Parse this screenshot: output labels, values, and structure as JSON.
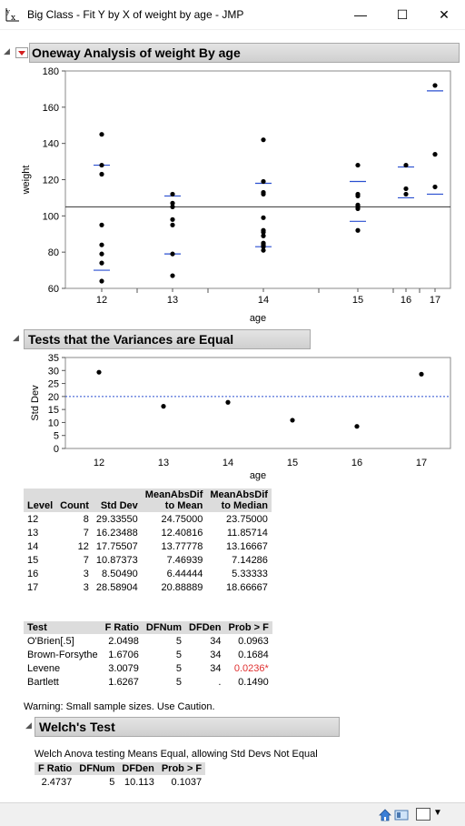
{
  "window": {
    "title": "Big Class - Fit Y by X of weight by age - JMP",
    "minimize_glyph": "—",
    "maximize_glyph": "☐",
    "close_glyph": "✕"
  },
  "oneway": {
    "title": "Oneway Analysis of weight By age",
    "chart_data": {
      "type": "scatter",
      "xlabel": "age",
      "ylabel": "weight",
      "ylim": [
        60,
        180
      ],
      "yticks": [
        60,
        80,
        100,
        120,
        140,
        160,
        180
      ],
      "categories": [
        "12",
        "13",
        "14",
        "15",
        "16",
        "17"
      ],
      "grand_mean": 105,
      "points": {
        "12": [
          145,
          128,
          123,
          95,
          84,
          79,
          74,
          64
        ],
        "13": [
          112,
          107,
          105,
          98,
          95,
          79,
          67
        ],
        "14": [
          142,
          119,
          113,
          112,
          99,
          92,
          91,
          89,
          85,
          84,
          81,
          83
        ],
        "15": [
          128,
          112,
          111,
          106,
          105,
          104,
          92
        ],
        "16": [
          128,
          115,
          112
        ],
        "17": [
          172,
          134,
          116
        ]
      },
      "mean_ticks": {
        "12": [
          128,
          70
        ],
        "13": [
          111,
          79
        ],
        "14": [
          118,
          83
        ],
        "15": [
          119,
          97
        ],
        "16": [
          127,
          110
        ],
        "17": [
          169,
          112
        ]
      }
    }
  },
  "variances": {
    "title": "Tests that the Variances are Equal",
    "chart_data": {
      "type": "scatter",
      "xlabel": "age",
      "ylabel": "Std Dev",
      "ylim": [
        0,
        35
      ],
      "yticks": [
        0,
        5,
        10,
        15,
        20,
        25,
        30,
        35
      ],
      "categories": [
        "12",
        "13",
        "14",
        "15",
        "16",
        "17"
      ],
      "values": [
        29.3355,
        16.23488,
        17.75507,
        10.87373,
        8.5049,
        28.58904
      ],
      "reference_line": 20
    },
    "level_table": {
      "headers": [
        [
          "Level"
        ],
        [
          "Count"
        ],
        [
          "Std Dev"
        ],
        [
          "MeanAbsDif",
          "to Mean"
        ],
        [
          "MeanAbsDif",
          "to Median"
        ]
      ],
      "rows": [
        [
          "12",
          "8",
          "29.33550",
          "24.75000",
          "23.75000"
        ],
        [
          "13",
          "7",
          "16.23488",
          "12.40816",
          "11.85714"
        ],
        [
          "14",
          "12",
          "17.75507",
          "13.77778",
          "13.16667"
        ],
        [
          "15",
          "7",
          "10.87373",
          "7.46939",
          "7.14286"
        ],
        [
          "16",
          "3",
          "8.50490",
          "6.44444",
          "5.33333"
        ],
        [
          "17",
          "3",
          "28.58904",
          "20.88889",
          "18.66667"
        ]
      ]
    },
    "test_table": {
      "headers": [
        "Test",
        "F Ratio",
        "DFNum",
        "DFDen",
        "Prob > F"
      ],
      "rows": [
        [
          "O'Brien[.5]",
          "2.0498",
          "5",
          "34",
          "0.0963"
        ],
        [
          "Brown-Forsythe",
          "1.6706",
          "5",
          "34",
          "0.1684"
        ],
        [
          "Levene",
          "3.0079",
          "5",
          "34",
          "0.0236*"
        ],
        [
          "Bartlett",
          "1.6267",
          "5",
          ".",
          "0.1490"
        ]
      ],
      "significant_color": "#e03030"
    },
    "warning": "Warning: Small sample sizes. Use Caution."
  },
  "welch": {
    "title": "Welch's Test",
    "description": "Welch Anova testing Means Equal, allowing Std Devs Not Equal",
    "headers": [
      "F Ratio",
      "DFNum",
      "DFDen",
      "Prob > F"
    ],
    "row": [
      "2.4737",
      "5",
      "10.113",
      "0.1037"
    ]
  },
  "statusbar": {
    "home_icon": "home-icon",
    "display_icon": "window-icon"
  }
}
